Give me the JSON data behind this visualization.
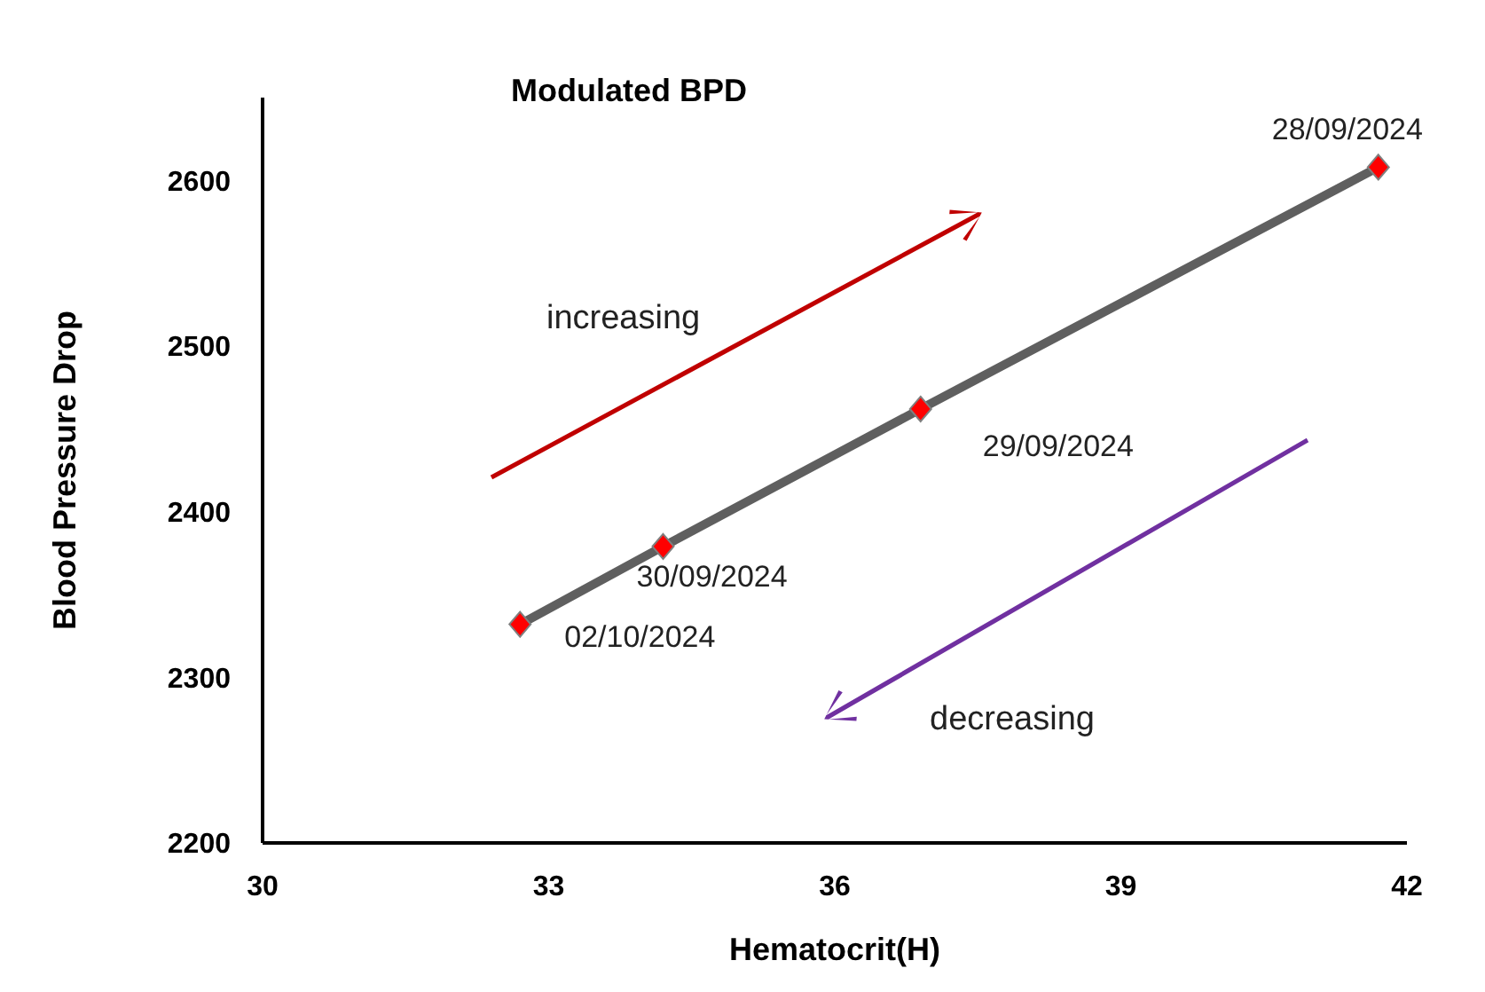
{
  "chart_data": {
    "type": "line",
    "title": "Modulated BPD",
    "xlabel": "Hematocrit(H)",
    "ylabel": "Blood Pressure Drop",
    "x": [
      32.7,
      34.2,
      36.9,
      41.7
    ],
    "series": [
      {
        "color": "#5f5f5f",
        "values": [
          2332,
          2379,
          2462,
          2608
        ]
      }
    ],
    "xlim": [
      30,
      42
    ],
    "xticks": [
      30,
      33,
      36,
      39,
      42
    ],
    "ylim": [
      2200,
      2650
    ],
    "yticks": [
      2200,
      2300,
      2400,
      2500,
      2600
    ],
    "colors": [
      "#ff0000",
      "#ff0000",
      "#ff0000",
      "#ff0000"
    ],
    "grid": false,
    "legend": false,
    "marker": "diamond",
    "line_style": "solid",
    "annotations": [
      {
        "text": "28/09/2024",
        "x": 41.7,
        "y": 2608
      },
      {
        "text": "29/09/2024",
        "x": 36.9,
        "y": 2462
      },
      {
        "text": "30/09/2024",
        "x": 34.2,
        "y": 2379
      },
      {
        "text": "02/10/2024",
        "x": 32.7,
        "y": 2332
      },
      "increasing",
      "decreasing"
    ]
  }
}
